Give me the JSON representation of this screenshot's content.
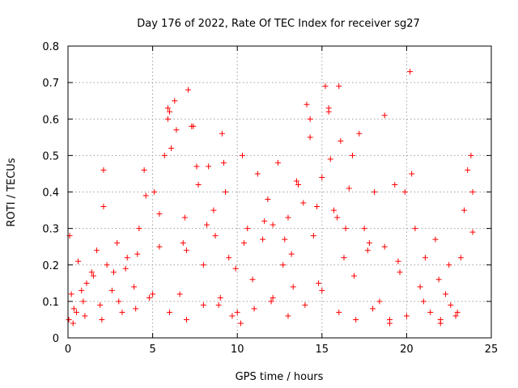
{
  "chart_data": {
    "type": "scatter",
    "title": "Day 176 of 2022, Rate Of TEC Index for receiver sg27",
    "xlabel": "GPS time / hours",
    "ylabel": "ROTI / TECUs",
    "xlim": [
      0,
      25
    ],
    "ylim": [
      0,
      0.8
    ],
    "xticks": [
      "0",
      "5",
      "10",
      "15",
      "20",
      "25"
    ],
    "yticks": [
      "0",
      "0.1",
      "0.2",
      "0.3",
      "0.4",
      "0.5",
      "0.6",
      "0.7",
      "0.8"
    ],
    "grid": true,
    "marker": "plus",
    "series_color": "#ff0000",
    "series": [
      {
        "x": [
          0.05,
          0.1,
          0.2,
          0.35,
          0.6,
          0.9,
          1.1,
          1.4,
          1.7,
          1.9,
          2.1,
          2.3,
          2.6,
          2.9,
          3.2,
          3.5,
          3.9,
          4.2,
          4.5,
          4.8,
          5.1,
          5.4,
          5.7,
          5.9,
          6.1,
          6.3,
          6.6,
          6.9,
          7.1,
          7.4,
          7.7,
          8.0,
          8.3,
          8.6,
          8.9,
          9.1,
          9.3,
          9.5,
          9.7,
          10.0,
          10.3,
          10.6,
          10.9,
          11.2,
          11.5,
          11.8,
          12.1,
          12.4,
          12.7,
          13.0,
          13.3,
          13.6,
          13.9,
          14.1,
          14.3,
          14.5,
          14.8,
          15.0,
          15.2,
          15.4,
          15.7,
          16.0,
          16.3,
          16.6,
          16.9,
          17.2,
          17.5,
          17.8,
          18.1,
          18.4,
          18.7,
          19.0,
          19.3,
          19.6,
          19.9,
          20.2,
          20.5,
          20.8,
          21.1,
          21.4,
          21.7,
          22.0,
          22.3,
          22.6,
          22.9,
          23.2,
          23.4,
          23.6,
          23.8,
          23.9,
          0.3,
          1.0,
          2.0,
          3.0,
          4.0,
          5.0,
          6.0,
          7.0,
          8.0,
          9.0,
          10.2,
          11.0,
          12.0,
          13.0,
          14.0,
          15.0,
          16.0,
          17.0,
          18.0,
          19.0,
          20.0,
          21.0,
          22.0,
          23.0,
          5.9,
          6.0,
          6.4,
          7.3,
          7.6,
          14.3,
          15.4,
          15.5,
          16.1,
          16.8,
          18.7,
          20.3,
          9.2,
          5.4,
          4.6,
          2.1,
          23.9,
          12.1,
          10.4,
          13.5,
          11.6,
          8.7,
          7.0,
          3.4,
          1.5,
          0.8,
          19.5,
          21.9,
          22.5,
          17.7,
          16.4,
          15.9,
          14.7,
          13.2,
          12.8,
          9.9,
          8.2,
          6.8,
          4.1,
          2.7,
          0.5
        ],
        "y": [
          0.05,
          0.28,
          0.12,
          0.08,
          0.21,
          0.1,
          0.15,
          0.18,
          0.24,
          0.09,
          0.46,
          0.2,
          0.13,
          0.26,
          0.07,
          0.22,
          0.14,
          0.3,
          0.46,
          0.11,
          0.4,
          0.25,
          0.5,
          0.63,
          0.52,
          0.65,
          0.12,
          0.33,
          0.68,
          0.58,
          0.42,
          0.2,
          0.47,
          0.35,
          0.09,
          0.56,
          0.4,
          0.22,
          0.06,
          0.07,
          0.5,
          0.3,
          0.16,
          0.45,
          0.27,
          0.38,
          0.11,
          0.48,
          0.2,
          0.33,
          0.14,
          0.42,
          0.37,
          0.64,
          0.55,
          0.28,
          0.15,
          0.44,
          0.69,
          0.63,
          0.35,
          0.69,
          0.22,
          0.41,
          0.17,
          0.56,
          0.3,
          0.26,
          0.4,
          0.1,
          0.61,
          0.05,
          0.42,
          0.18,
          0.4,
          0.73,
          0.3,
          0.14,
          0.22,
          0.07,
          0.27,
          0.04,
          0.12,
          0.09,
          0.06,
          0.22,
          0.35,
          0.46,
          0.5,
          0.4,
          0.04,
          0.06,
          0.05,
          0.1,
          0.08,
          0.12,
          0.07,
          0.05,
          0.09,
          0.11,
          0.04,
          0.08,
          0.1,
          0.06,
          0.09,
          0.13,
          0.07,
          0.05,
          0.08,
          0.04,
          0.06,
          0.1,
          0.05,
          0.07,
          0.6,
          0.62,
          0.57,
          0.58,
          0.47,
          0.6,
          0.62,
          0.49,
          0.54,
          0.5,
          0.25,
          0.45,
          0.48,
          0.34,
          0.39,
          0.36,
          0.29,
          0.31,
          0.26,
          0.43,
          0.32,
          0.28,
          0.24,
          0.19,
          0.17,
          0.13,
          0.21,
          0.16,
          0.2,
          0.24,
          0.3,
          0.33,
          0.36,
          0.23,
          0.27,
          0.19,
          0.31,
          0.26,
          0.23,
          0.18,
          0.07
        ]
      }
    ]
  }
}
